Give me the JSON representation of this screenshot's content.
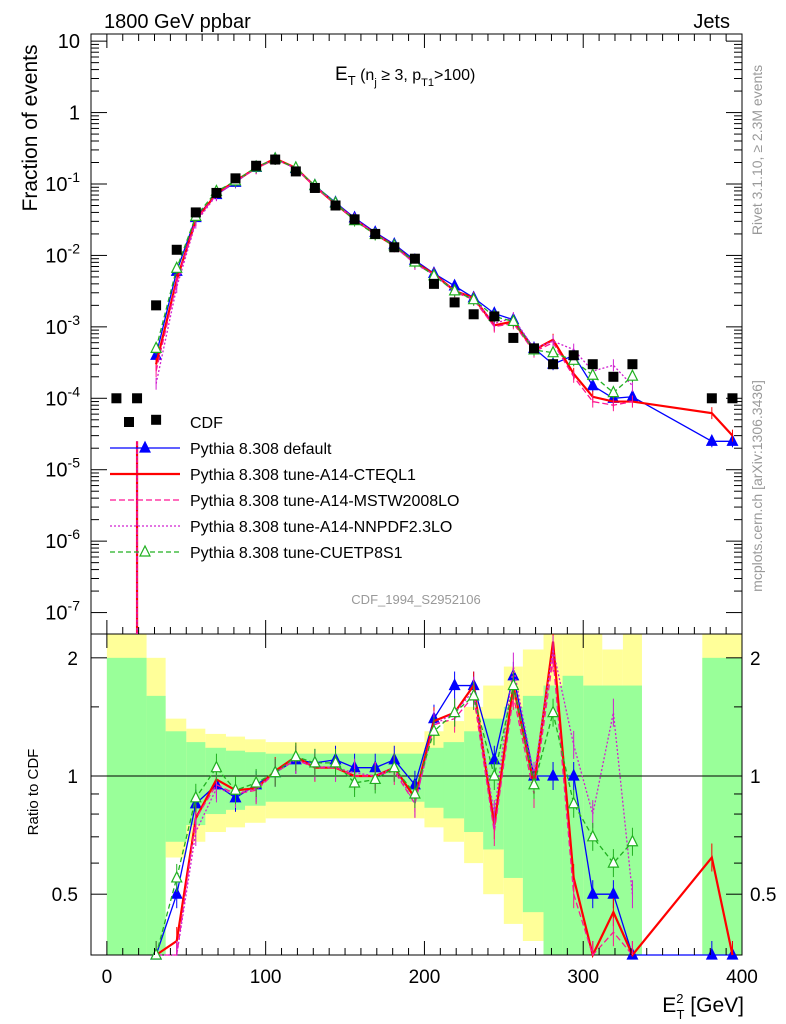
{
  "header": {
    "left": "1800 GeV ppbar",
    "right": "Jets"
  },
  "side": {
    "rivet": "Rivet 3.1.10, ≥ 2.3M events",
    "mcplots": "mcplots.cern.ch [arXiv:1306.3436]"
  },
  "chart_data": {
    "type": "line",
    "title_main": "E",
    "title_sub_main": "T",
    "title_paren_open": " (n",
    "title_sub_j": "j",
    "title_geq": " ≥ 3, p",
    "title_sub_t1": "T1",
    "title_rest": ">100)",
    "analysis": "CDF_1994_S2952106",
    "ylabel_top": "Fraction of events",
    "ylabel_bottom": "Ratio to CDF",
    "xlabel_main": "E",
    "xlabel_sup": "2",
    "xlabel_sub": "T",
    "xlabel_unit": " [GeV]",
    "xlim": [
      -10,
      400
    ],
    "ylim_top_log": [
      -7.3,
      1.1
    ],
    "ylim_ratio": [
      0.35,
      2.3
    ],
    "x_ticks": [
      "0",
      "100",
      "200",
      "300",
      "400"
    ],
    "y_ticks_top": [
      {
        "base": "10",
        "exp": "-7",
        "v": -7
      },
      {
        "base": "10",
        "exp": "-6",
        "v": -6
      },
      {
        "base": "10",
        "exp": "-5",
        "v": -5
      },
      {
        "base": "10",
        "exp": "-4",
        "v": -4
      },
      {
        "base": "10",
        "exp": "-3",
        "v": -3
      },
      {
        "base": "10",
        "exp": "-2",
        "v": -2
      },
      {
        "base": "10",
        "exp": "-1",
        "v": -1
      },
      {
        "base": "1",
        "exp": "",
        "v": 0
      },
      {
        "base": "10",
        "exp": "",
        "v": 1
      }
    ],
    "y_ticks_ratio": [
      "0.5",
      "1",
      "2"
    ],
    "x": [
      6,
      19,
      31,
      44,
      56,
      69,
      81,
      94,
      106,
      119,
      131,
      144,
      156,
      169,
      181,
      194,
      206,
      219,
      231,
      244,
      256,
      269,
      281,
      294,
      306,
      319,
      331,
      381,
      394
    ],
    "cdf": [
      0.0001,
      0.0001,
      0.002,
      0.012,
      0.04,
      0.075,
      0.12,
      0.18,
      0.22,
      0.15,
      0.088,
      0.05,
      0.032,
      0.02,
      0.013,
      0.009,
      0.004,
      0.0022,
      0.0015,
      0.0014,
      0.0007,
      0.0005,
      0.0003,
      0.0004,
      0.0003,
      0.0002,
      0.0003,
      0.0001,
      0.0001
    ],
    "cdf_first_index_low": {
      "x": 31,
      "y": 5e-05
    },
    "band_green": [
      [
        0,
        25,
        0.35,
        2.0
      ],
      [
        25,
        37,
        0.35,
        1.6
      ],
      [
        37,
        50,
        0.68,
        1.3
      ],
      [
        50,
        62,
        0.75,
        1.22
      ],
      [
        62,
        75,
        0.8,
        1.18
      ],
      [
        75,
        87,
        0.82,
        1.16
      ],
      [
        87,
        100,
        0.84,
        1.15
      ],
      [
        100,
        200,
        0.86,
        1.14
      ],
      [
        200,
        212,
        0.83,
        1.18
      ],
      [
        212,
        225,
        0.78,
        1.22
      ],
      [
        225,
        237,
        0.72,
        1.3
      ],
      [
        237,
        250,
        0.65,
        1.4
      ],
      [
        250,
        262,
        0.55,
        1.5
      ],
      [
        262,
        275,
        0.45,
        1.6
      ],
      [
        275,
        287,
        0.35,
        1.7
      ],
      [
        287,
        300,
        0.35,
        1.8
      ],
      [
        300,
        337,
        0.35,
        1.7
      ],
      [
        375,
        400,
        0.35,
        2.0
      ]
    ],
    "band_yellow": [
      [
        0,
        25,
        0.35,
        2.3
      ],
      [
        25,
        37,
        0.35,
        2.0
      ],
      [
        37,
        50,
        0.62,
        1.4
      ],
      [
        50,
        62,
        0.68,
        1.32
      ],
      [
        62,
        75,
        0.72,
        1.28
      ],
      [
        75,
        87,
        0.74,
        1.26
      ],
      [
        87,
        100,
        0.76,
        1.24
      ],
      [
        100,
        200,
        0.78,
        1.22
      ],
      [
        200,
        212,
        0.74,
        1.3
      ],
      [
        212,
        225,
        0.68,
        1.38
      ],
      [
        225,
        237,
        0.6,
        1.5
      ],
      [
        237,
        250,
        0.5,
        1.7
      ],
      [
        250,
        262,
        0.42,
        1.9
      ],
      [
        262,
        275,
        0.38,
        2.1
      ],
      [
        275,
        287,
        0.35,
        2.3
      ],
      [
        287,
        300,
        0.35,
        2.3
      ],
      [
        300,
        312,
        0.35,
        2.3
      ],
      [
        312,
        325,
        0.35,
        2.1
      ],
      [
        325,
        337,
        0.35,
        2.3
      ],
      [
        375,
        400,
        0.35,
        2.3
      ]
    ],
    "series": [
      {
        "name": "Pythia 8.308 default",
        "color": "#0000ff",
        "dash": "",
        "marker": "tri-filled",
        "ratio": [
          null,
          null,
          0.2,
          0.5,
          0.85,
          0.95,
          0.88,
          0.95,
          1.02,
          1.1,
          1.08,
          1.1,
          1.05,
          1.05,
          1.1,
          0.95,
          1.4,
          1.7,
          1.7,
          1.1,
          1.8,
          1.0,
          1.0,
          1.0,
          0.5,
          0.5,
          0.35,
          null,
          null
        ],
        "value_override": {
          "381": 2.5e-05,
          "394": 2.5e-05
        }
      },
      {
        "name": "Pythia 8.308 tune-A14-CTEQL1",
        "color": "#ff0000",
        "dash": "",
        "marker": "none",
        "ratio": [
          null,
          null,
          0.15,
          0.38,
          0.78,
          0.98,
          0.92,
          0.93,
          1.03,
          1.12,
          1.05,
          1.05,
          1.0,
          1.0,
          1.05,
          0.88,
          1.38,
          1.45,
          1.7,
          0.75,
          1.7,
          0.95,
          2.2,
          0.55,
          0.35,
          0.45,
          0.3,
          0.62,
          0.3
        ]
      },
      {
        "name": "Pythia 8.308 tune-A14-MSTW2008LO",
        "color": "#ff1493",
        "dash": "6,3",
        "marker": "none",
        "ratio": [
          null,
          null,
          0.12,
          0.35,
          0.78,
          0.95,
          0.9,
          0.92,
          1.02,
          1.1,
          1.05,
          1.05,
          1.0,
          1.0,
          1.03,
          0.85,
          1.35,
          1.4,
          1.6,
          0.72,
          1.6,
          0.9,
          2.0,
          0.5,
          0.3,
          0.4,
          0.3,
          null,
          null
        ]
      },
      {
        "name": "Pythia 8.308 tune-A14-NNPDF2.3LO",
        "color": "#d020d0",
        "dash": "2,2",
        "marker": "none",
        "ratio": [
          null,
          null,
          0.08,
          0.3,
          0.72,
          0.93,
          0.9,
          0.93,
          1.02,
          1.1,
          1.06,
          1.05,
          1.02,
          1.0,
          1.05,
          0.85,
          1.35,
          1.45,
          1.65,
          0.8,
          1.9,
          1.0,
          2.1,
          1.2,
          0.8,
          1.45,
          0.5,
          null,
          null
        ]
      },
      {
        "name": "Pythia 8.308 tune-CUETP8S1",
        "color": "#20b020",
        "dash": "5,3",
        "marker": "tri-open",
        "ratio": [
          null,
          null,
          0.25,
          0.55,
          0.88,
          1.05,
          0.92,
          0.96,
          1.02,
          1.12,
          1.08,
          1.08,
          0.96,
          0.98,
          1.05,
          0.9,
          1.3,
          1.45,
          1.6,
          1.0,
          1.7,
          0.95,
          1.45,
          0.85,
          0.7,
          0.6,
          0.68,
          null,
          null
        ]
      }
    ],
    "legend_cdf": "CDF"
  }
}
